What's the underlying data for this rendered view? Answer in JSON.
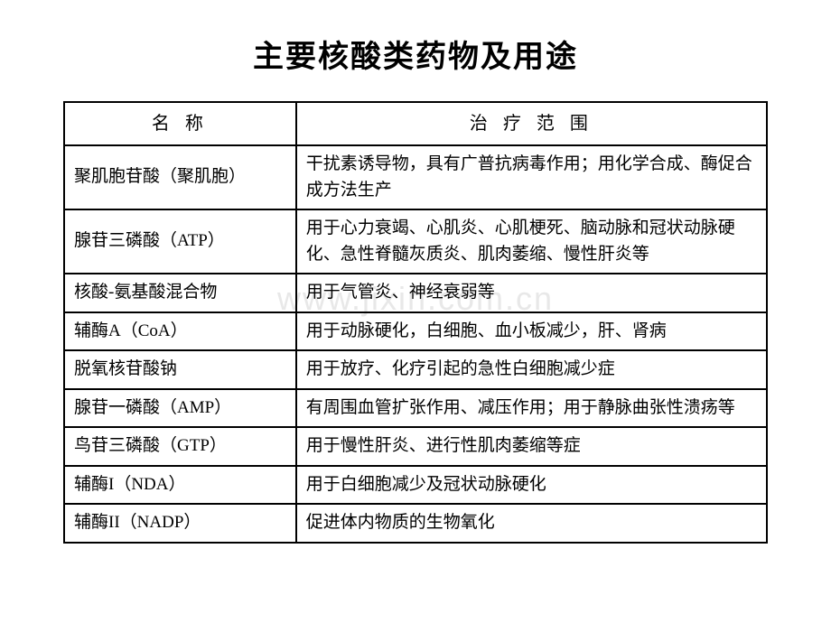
{
  "title": "主要核酸类药物及用途",
  "watermark": "www.jixin.com.cn",
  "columns": {
    "name": "名 称",
    "scope": "治 疗 范 围"
  },
  "rows": [
    {
      "name": "聚肌胞苷酸（聚肌胞）",
      "scope": "干扰素诱导物，具有广普抗病毒作用；用化学合成、酶促合成方法生产"
    },
    {
      "name": "腺苷三磷酸（ATP）",
      "scope": "用于心力衰竭、心肌炎、心肌梗死、脑动脉和冠状动脉硬化、急性脊髓灰质炎、肌肉萎缩、慢性肝炎等"
    },
    {
      "name": "核酸-氨基酸混合物",
      "scope": "用于气管炎、神经衰弱等"
    },
    {
      "name": "辅酶A（CoA）",
      "scope": "用于动脉硬化，白细胞、血小板减少，肝、肾病"
    },
    {
      "name": "脱氧核苷酸钠",
      "scope": "用于放疗、化疗引起的急性白细胞减少症"
    },
    {
      "name": "腺苷一磷酸（AMP）",
      "scope": "有周围血管扩张作用、减压作用；用于静脉曲张性溃疡等"
    },
    {
      "name": "鸟苷三磷酸（GTP）",
      "scope": "用于慢性肝炎、进行性肌肉萎缩等症"
    },
    {
      "name": "辅酶I（NDA）",
      "scope": "用于白细胞减少及冠状动脉硬化"
    },
    {
      "name": "辅酶II（NADP）",
      "scope": "促进体内物质的生物氧化"
    }
  ]
}
